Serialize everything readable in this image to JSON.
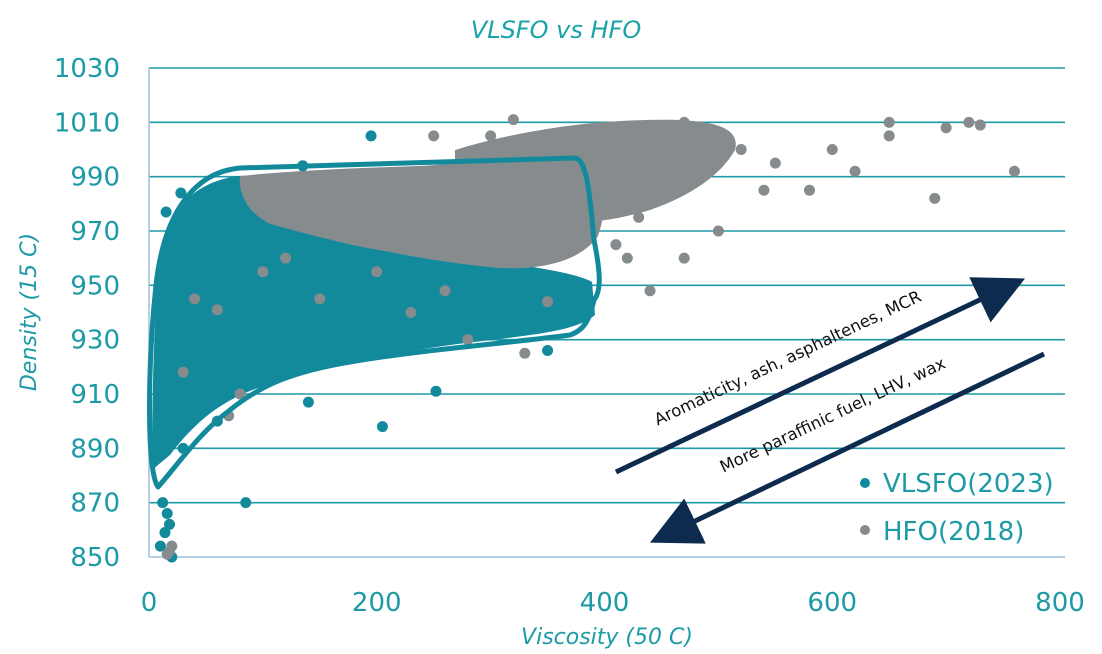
{
  "chart_data": {
    "type": "scatter",
    "title": "VLSFO vs HFO",
    "xlabel": "Viscosity (50 C)",
    "ylabel": "Density (15 C)",
    "xlim": [
      0,
      800
    ],
    "ylim": [
      850,
      1030
    ],
    "x_ticks": [
      "0",
      "200",
      "400",
      "600",
      "800"
    ],
    "y_ticks": [
      "850",
      "870",
      "890",
      "910",
      "930",
      "950",
      "970",
      "990",
      "1010",
      "1030"
    ],
    "grid": "horizontal",
    "legend_position": "bottom-right",
    "colors": {
      "teal": "#138a9c",
      "gray": "#868b8e",
      "arrow": "#0d2b4e",
      "title": "#1aa3a8",
      "axis_label": "#1c9aa6",
      "tick": "#1c9aa6"
    },
    "series": [
      {
        "name": "VLSFO(2023)",
        "color": "#138a9c",
        "points": [
          [
            10,
            854
          ],
          [
            14,
            859
          ],
          [
            16,
            866
          ],
          [
            18,
            862
          ],
          [
            20,
            850
          ],
          [
            12,
            870
          ],
          [
            85,
            870
          ],
          [
            205,
            898
          ],
          [
            252,
            911
          ],
          [
            140,
            907
          ],
          [
            195,
            1005
          ],
          [
            135,
            994
          ],
          [
            15,
            977
          ],
          [
            28,
            984
          ],
          [
            350,
            926
          ],
          [
            300,
            936
          ],
          [
            60,
            900
          ],
          [
            30,
            890
          ],
          [
            100,
            935
          ],
          [
            150,
            960
          ],
          [
            200,
            945
          ]
        ]
      },
      {
        "name": "HFO(2018)",
        "color": "#868b8e",
        "points": [
          [
            760,
            992
          ],
          [
            690,
            982
          ],
          [
            700,
            1008
          ],
          [
            650,
            1005
          ],
          [
            620,
            992
          ],
          [
            600,
            1000
          ],
          [
            550,
            995
          ],
          [
            520,
            1000
          ],
          [
            480,
            1005
          ],
          [
            460,
            990
          ],
          [
            440,
            982
          ],
          [
            430,
            975
          ],
          [
            410,
            965
          ],
          [
            420,
            960
          ],
          [
            440,
            948
          ],
          [
            470,
            960
          ],
          [
            500,
            970
          ],
          [
            650,
            1010
          ],
          [
            720,
            1010
          ],
          [
            730,
            1009
          ],
          [
            580,
            985
          ],
          [
            540,
            985
          ],
          [
            500,
            995
          ],
          [
            470,
            1010
          ],
          [
            400,
            1008
          ],
          [
            320,
            1011
          ],
          [
            250,
            1005
          ],
          [
            200,
            985
          ],
          [
            300,
            1005
          ],
          [
            18,
            852
          ],
          [
            20,
            854
          ],
          [
            16,
            851
          ],
          [
            100,
            955
          ],
          [
            120,
            960
          ],
          [
            150,
            945
          ],
          [
            200,
            955
          ],
          [
            230,
            940
          ],
          [
            260,
            948
          ],
          [
            280,
            930
          ],
          [
            330,
            925
          ],
          [
            350,
            944
          ],
          [
            60,
            941
          ],
          [
            40,
            945
          ],
          [
            30,
            918
          ],
          [
            80,
            910
          ],
          [
            70,
            902
          ]
        ]
      }
    ],
    "annotations": [
      {
        "text": "Aromaticity, ash, asphaltenes, MCR",
        "direction": "up"
      },
      {
        "text": "More paraffinic fuel, LHV, wax",
        "direction": "down"
      }
    ]
  }
}
